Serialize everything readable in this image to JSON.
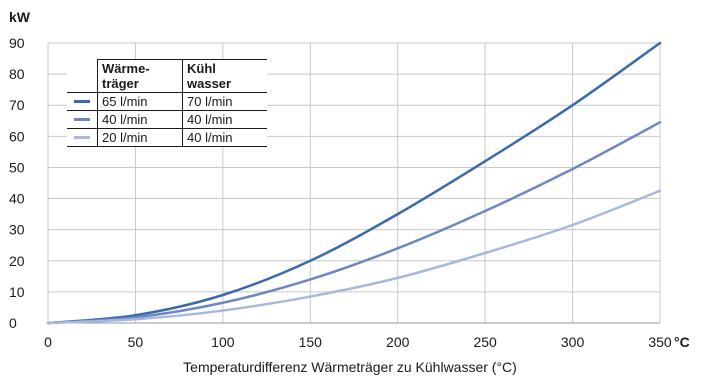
{
  "chart_data": {
    "type": "line",
    "y_unit": "kW",
    "x_unit": "°C",
    "xlabel": "Temperaturdifferenz Wärmeträger zu Kühlwasser (°C)",
    "xlim": [
      0,
      350
    ],
    "ylim": [
      0,
      90
    ],
    "x_ticks": [
      "0",
      "50",
      "100",
      "150",
      "200",
      "250",
      "300",
      "350"
    ],
    "y_ticks": [
      "0",
      "10",
      "20",
      "30",
      "40",
      "50",
      "60",
      "70",
      "80",
      "90"
    ],
    "grid": true,
    "legend_position": "top-left",
    "x": [
      0,
      50,
      100,
      150,
      200,
      250,
      300,
      350
    ],
    "series": [
      {
        "values": [
          0,
          2.5,
          9,
          20,
          35,
          52,
          70,
          90
        ],
        "color": "#3a6aad"
      },
      {
        "values": [
          0,
          1.8,
          6.5,
          14,
          24,
          36,
          49.5,
          64.5
        ],
        "color": "#6d87c3"
      },
      {
        "values": [
          0,
          1.2,
          4,
          8.5,
          14.5,
          22.5,
          31.5,
          42.5
        ],
        "color": "#a6b9dd"
      }
    ],
    "legend": {
      "header": [
        "",
        "Wärme-träger",
        "Kühl wasser"
      ],
      "header_lines": [
        [
          "Wärme-",
          "träger"
        ],
        [
          "Kühl",
          "wasser"
        ]
      ],
      "rows": [
        {
          "waermetraeger": "65 l/min",
          "kuehlwasser": "70 l/min"
        },
        {
          "waermetraeger": "40 l/min",
          "kuehlwasser": "40 l/min"
        },
        {
          "waermetraeger": "20 l/min",
          "kuehlwasser": "40 l/min"
        }
      ]
    }
  }
}
